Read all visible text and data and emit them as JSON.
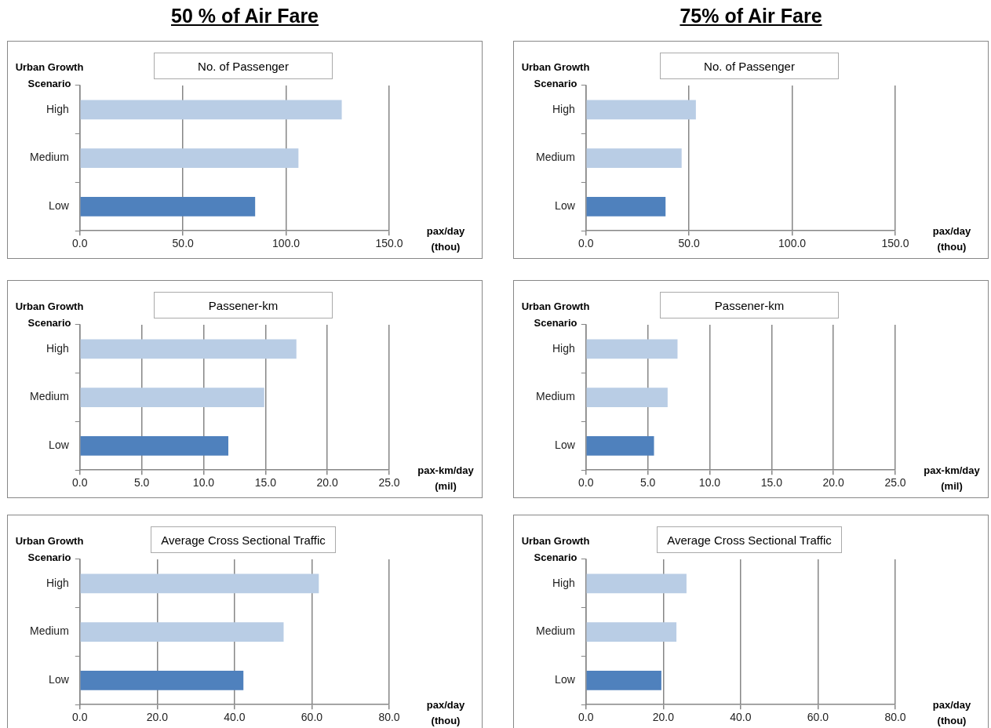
{
  "chart_data": [
    {
      "type": "bar",
      "orientation": "horizontal",
      "title": "No. of Passenger",
      "annotations": [
        "50 % of Air Fare"
      ],
      "ylabel": "Urban Growth Scenario",
      "xlabel": "pax/day (thou)",
      "categories": [
        "High",
        "Medium",
        "Low"
      ],
      "values": [
        127,
        106,
        85
      ],
      "colors": [
        "#b9cde5",
        "#b9cde5",
        "#4f81bd"
      ],
      "xlim": [
        0,
        150
      ],
      "xticks": [
        {
          "value": 0,
          "label": "0.0"
        },
        {
          "value": 50,
          "label": "50.0"
        },
        {
          "value": 100,
          "label": "100.0"
        },
        {
          "value": 150,
          "label": "150.0"
        }
      ],
      "grid": "x"
    },
    {
      "type": "bar",
      "orientation": "horizontal",
      "title": "No. of Passenger",
      "annotations": [
        "75% of Air Fare"
      ],
      "ylabel": "Urban Growth Scenario",
      "xlabel": "pax/day (thou)",
      "categories": [
        "High",
        "Medium",
        "Low"
      ],
      "values": [
        53.3,
        46.4,
        38.6
      ],
      "colors": [
        "#b9cde5",
        "#b9cde5",
        "#4f81bd"
      ],
      "xlim": [
        0,
        150
      ],
      "xticks": [
        {
          "value": 0,
          "label": "0.0"
        },
        {
          "value": 50,
          "label": "50.0"
        },
        {
          "value": 100,
          "label": "100.0"
        },
        {
          "value": 150,
          "label": "150.0"
        }
      ],
      "grid": "x"
    },
    {
      "type": "bar",
      "orientation": "horizontal",
      "title": "Passener-km",
      "ylabel": "Urban Growth Scenario",
      "xlabel": "pax-km/day (mil)",
      "categories": [
        "High",
        "Medium",
        "Low"
      ],
      "values": [
        17.5,
        14.9,
        12.0
      ],
      "colors": [
        "#b9cde5",
        "#b9cde5",
        "#4f81bd"
      ],
      "xlim": [
        0,
        25
      ],
      "xticks": [
        {
          "value": 0,
          "label": "0.0"
        },
        {
          "value": 5,
          "label": "5.0"
        },
        {
          "value": 10,
          "label": "10.0"
        },
        {
          "value": 15,
          "label": "15.0"
        },
        {
          "value": 20,
          "label": "20.0"
        },
        {
          "value": 25,
          "label": "25.0"
        }
      ],
      "grid": "x"
    },
    {
      "type": "bar",
      "orientation": "horizontal",
      "title": "Passener-km",
      "ylabel": "Urban Growth Scenario",
      "xlabel": "pax-km/day (mil)",
      "categories": [
        "High",
        "Medium",
        "Low"
      ],
      "values": [
        7.4,
        6.6,
        5.5
      ],
      "colors": [
        "#b9cde5",
        "#b9cde5",
        "#4f81bd"
      ],
      "xlim": [
        0,
        25
      ],
      "xticks": [
        {
          "value": 0,
          "label": "0.0"
        },
        {
          "value": 5,
          "label": "5.0"
        },
        {
          "value": 10,
          "label": "10.0"
        },
        {
          "value": 15,
          "label": "15.0"
        },
        {
          "value": 20,
          "label": "20.0"
        },
        {
          "value": 25,
          "label": "25.0"
        }
      ],
      "grid": "x"
    },
    {
      "type": "bar",
      "orientation": "horizontal",
      "title": "Average Cross Sectional Traffic",
      "ylabel": "Urban Growth Scenario",
      "xlabel": "pax/day (thou)",
      "categories": [
        "High",
        "Medium",
        "Low"
      ],
      "values": [
        61.8,
        52.7,
        42.3
      ],
      "colors": [
        "#b9cde5",
        "#b9cde5",
        "#4f81bd"
      ],
      "xlim": [
        0,
        80
      ],
      "xticks": [
        {
          "value": 0,
          "label": "0.0"
        },
        {
          "value": 20,
          "label": "20.0"
        },
        {
          "value": 40,
          "label": "40.0"
        },
        {
          "value": 60,
          "label": "60.0"
        },
        {
          "value": 80,
          "label": "80.0"
        }
      ],
      "grid": "x"
    },
    {
      "type": "bar",
      "orientation": "horizontal",
      "title": "Average Cross Sectional Traffic",
      "ylabel": "Urban Growth Scenario",
      "xlabel": "pax/day (thou)",
      "categories": [
        "High",
        "Medium",
        "Low"
      ],
      "values": [
        26.0,
        23.4,
        19.5
      ],
      "colors": [
        "#b9cde5",
        "#b9cde5",
        "#4f81bd"
      ],
      "xlim": [
        0,
        80
      ],
      "xticks": [
        {
          "value": 0,
          "label": "0.0"
        },
        {
          "value": 20,
          "label": "20.0"
        },
        {
          "value": 40,
          "label": "40.0"
        },
        {
          "value": 60,
          "label": "60.0"
        },
        {
          "value": 80,
          "label": "80.0"
        }
      ],
      "grid": "x"
    }
  ]
}
